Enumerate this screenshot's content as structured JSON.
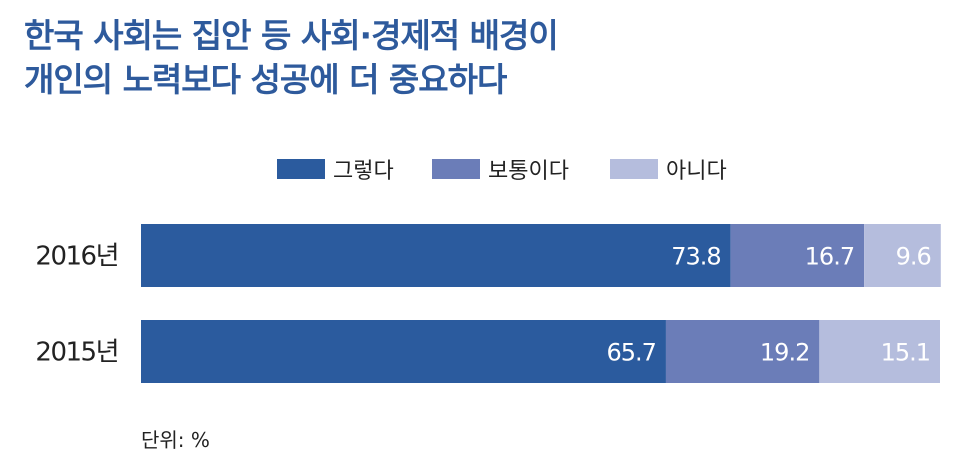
{
  "title": {
    "line1": "한국 사회는 집안 등 사회·경제적 배경이",
    "line2": "개인의 노력보다 성공에 더 중요하다"
  },
  "unit_label": "단위: %",
  "colors": {
    "series": [
      "#2b5b9e",
      "#6b7db8",
      "#b5bddd"
    ],
    "title": "#2e5a9c"
  },
  "chart_data": {
    "type": "bar",
    "orientation": "horizontal",
    "stacked": true,
    "categories": [
      "2016년",
      "2015년"
    ],
    "series": [
      {
        "name": "그렇다",
        "values": [
          73.8,
          65.7
        ]
      },
      {
        "name": "보통이다",
        "values": [
          16.7,
          19.2
        ]
      },
      {
        "name": "아니다",
        "values": [
          9.6,
          15.1
        ]
      }
    ],
    "value_labels": [
      [
        "73.8",
        "16.7",
        "9.6"
      ],
      [
        "65.7",
        "19.2",
        "15.1"
      ]
    ],
    "xlim": [
      0,
      100
    ],
    "grid": false,
    "legend_position": "top-center"
  }
}
